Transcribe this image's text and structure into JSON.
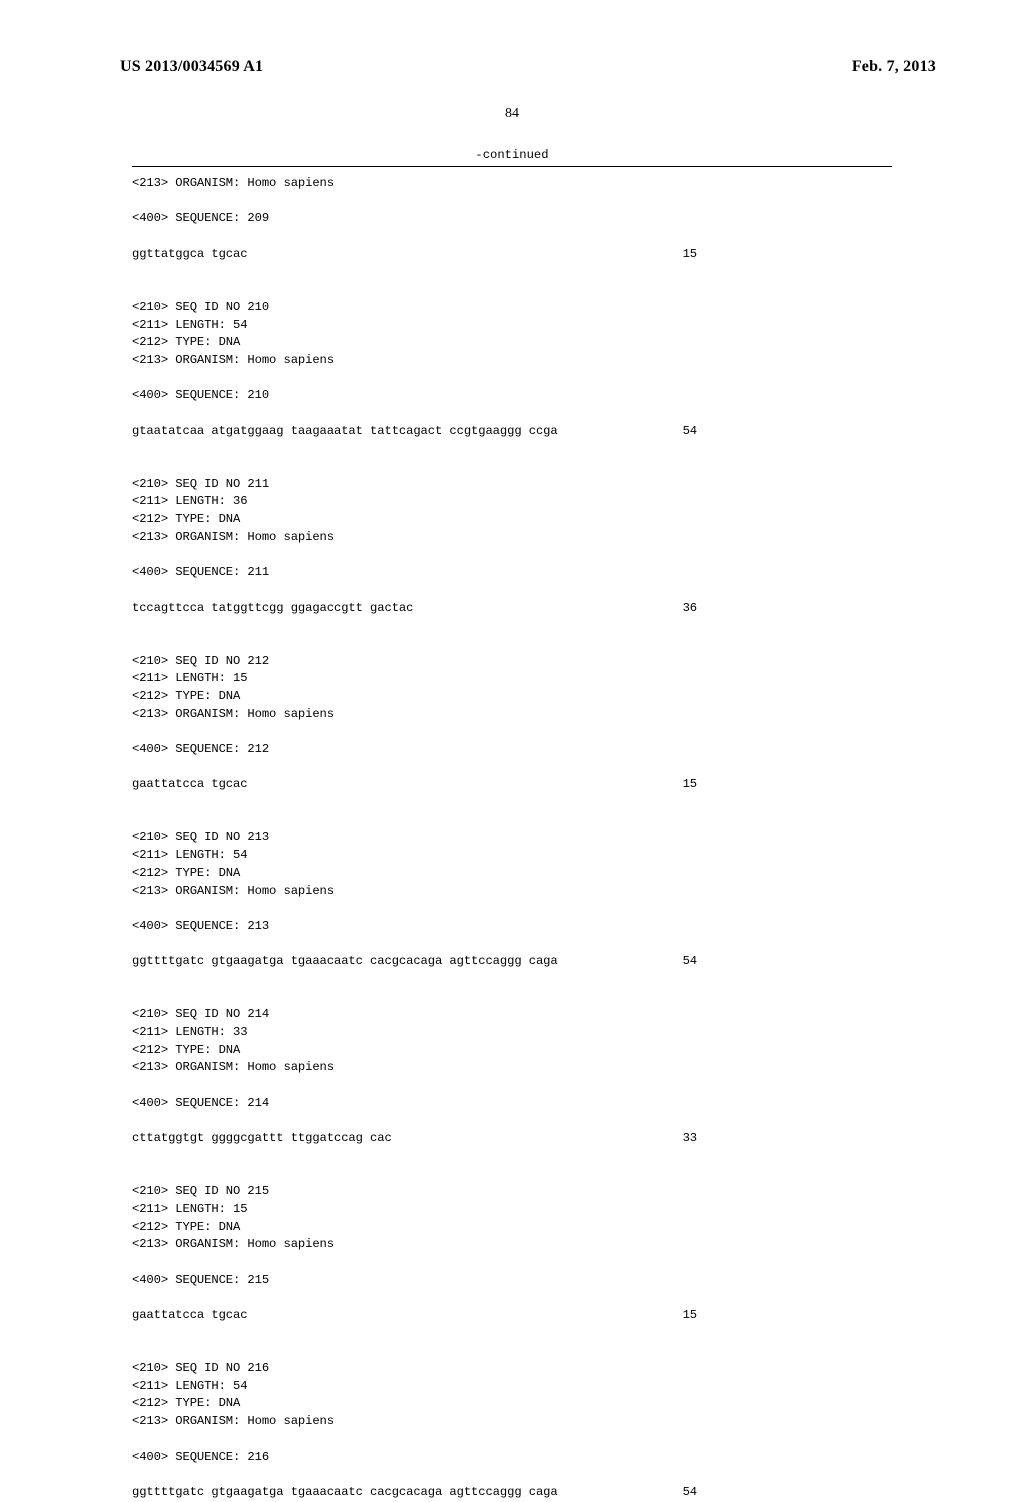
{
  "header": {
    "left": "US 2013/0034569 A1",
    "right": "Feb. 7, 2013"
  },
  "page_number": "84",
  "continued": "-continued",
  "sequences": [
    {
      "preheader": "<213> ORGANISM: Homo sapiens",
      "seqline": "<400> SEQUENCE: 209",
      "sequence": "ggttatggca tgcac",
      "length_num": "15"
    },
    {
      "header_lines": [
        "<210> SEQ ID NO 210",
        "<211> LENGTH: 54",
        "<212> TYPE: DNA",
        "<213> ORGANISM: Homo sapiens"
      ],
      "seqline": "<400> SEQUENCE: 210",
      "sequence": "gtaatatcaa atgatggaag taagaaatat tattcagact ccgtgaaggg ccga",
      "length_num": "54"
    },
    {
      "header_lines": [
        "<210> SEQ ID NO 211",
        "<211> LENGTH: 36",
        "<212> TYPE: DNA",
        "<213> ORGANISM: Homo sapiens"
      ],
      "seqline": "<400> SEQUENCE: 211",
      "sequence": "tccagttcca tatggttcgg ggagaccgtt gactac",
      "length_num": "36"
    },
    {
      "header_lines": [
        "<210> SEQ ID NO 212",
        "<211> LENGTH: 15",
        "<212> TYPE: DNA",
        "<213> ORGANISM: Homo sapiens"
      ],
      "seqline": "<400> SEQUENCE: 212",
      "sequence": "gaattatcca tgcac",
      "length_num": "15"
    },
    {
      "header_lines": [
        "<210> SEQ ID NO 213",
        "<211> LENGTH: 54",
        "<212> TYPE: DNA",
        "<213> ORGANISM: Homo sapiens"
      ],
      "seqline": "<400> SEQUENCE: 213",
      "sequence": "ggttttgatc gtgaagatga tgaaacaatc cacgcacaga agttccaggg caga",
      "length_num": "54"
    },
    {
      "header_lines": [
        "<210> SEQ ID NO 214",
        "<211> LENGTH: 33",
        "<212> TYPE: DNA",
        "<213> ORGANISM: Homo sapiens"
      ],
      "seqline": "<400> SEQUENCE: 214",
      "sequence": "cttatggtgt ggggcgattt ttggatccag cac",
      "length_num": "33"
    },
    {
      "header_lines": [
        "<210> SEQ ID NO 215",
        "<211> LENGTH: 15",
        "<212> TYPE: DNA",
        "<213> ORGANISM: Homo sapiens"
      ],
      "seqline": "<400> SEQUENCE: 215",
      "sequence": "gaattatcca tgcac",
      "length_num": "15"
    },
    {
      "header_lines": [
        "<210> SEQ ID NO 216",
        "<211> LENGTH: 54",
        "<212> TYPE: DNA",
        "<213> ORGANISM: Homo sapiens"
      ],
      "seqline": "<400> SEQUENCE: 216",
      "sequence": "ggttttgatc gtgaagatga tgaaacaatc cacgcacaga agttccaggg caga",
      "length_num": "54"
    }
  ]
}
